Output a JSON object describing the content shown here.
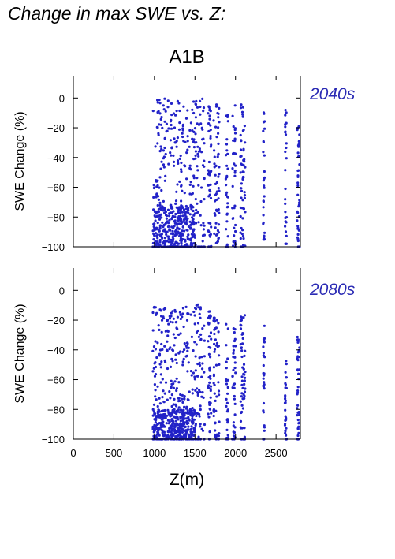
{
  "page": {
    "title": "Change in max SWE vs. Z:"
  },
  "colors": {
    "points": "#2222c8",
    "period_label": "#2a2ab4",
    "axis": "#000000"
  },
  "chart_data": [
    {
      "type": "scatter",
      "title": "A1B",
      "period_label": "2040s",
      "xlabel": "Z(m)",
      "ylabel": "SWE Change (%)",
      "xlim": [
        0,
        2800
      ],
      "ylim": [
        -100,
        15
      ],
      "xticks": [
        0,
        500,
        1000,
        1500,
        2000,
        2500
      ],
      "yticks": [
        0,
        -20,
        -40,
        -60,
        -80,
        -100
      ],
      "show_xtick_labels": false,
      "grid": false,
      "legend": "none",
      "elevation_bands": [
        {
          "z": [
            980,
            1500
          ],
          "dense": true,
          "y_range": [
            -100,
            0
          ],
          "cluster_y": [
            -100,
            -72
          ],
          "count": 520
        },
        {
          "z": [
            1500,
            1620
          ],
          "dense": false,
          "y_range": [
            -100,
            0
          ],
          "count": 70
        },
        {
          "z": [
            1660,
            1700
          ],
          "dense": false,
          "y_range": [
            -100,
            -3
          ],
          "count": 45
        },
        {
          "z": [
            1730,
            1800
          ],
          "dense": false,
          "y_range": [
            -100,
            -4
          ],
          "count": 55
        },
        {
          "z": [
            1880,
            1910
          ],
          "dense": false,
          "y_range": [
            -100,
            -8
          ],
          "count": 30
        },
        {
          "z": [
            1960,
            2000
          ],
          "dense": false,
          "y_range": [
            -100,
            -5
          ],
          "count": 35
        },
        {
          "z": [
            2060,
            2120
          ],
          "dense": false,
          "y_range": [
            -100,
            -4
          ],
          "count": 60
        },
        {
          "z": [
            2340,
            2360
          ],
          "dense": false,
          "y_range": [
            -95,
            -8
          ],
          "count": 30
        },
        {
          "z": [
            2610,
            2630
          ],
          "dense": false,
          "y_range": [
            -98,
            -7
          ],
          "count": 30
        },
        {
          "z": [
            2760,
            2790
          ],
          "dense": false,
          "y_range": [
            -100,
            -16
          ],
          "count": 40
        }
      ]
    },
    {
      "type": "scatter",
      "title": "",
      "period_label": "2080s",
      "xlabel": "Z(m)",
      "ylabel": "SWE Change (%)",
      "xlim": [
        0,
        2800
      ],
      "ylim": [
        -100,
        15
      ],
      "xticks": [
        0,
        500,
        1000,
        1500,
        2000,
        2500
      ],
      "yticks": [
        0,
        -20,
        -40,
        -60,
        -80,
        -100
      ],
      "show_xtick_labels": true,
      "grid": false,
      "legend": "none",
      "elevation_bands": [
        {
          "z": [
            980,
            1500
          ],
          "dense": true,
          "y_range": [
            -100,
            -11
          ],
          "cluster_y": [
            -100,
            -80
          ],
          "count": 560
        },
        {
          "z": [
            1500,
            1620
          ],
          "dense": false,
          "y_range": [
            -100,
            -8
          ],
          "count": 70
        },
        {
          "z": [
            1660,
            1700
          ],
          "dense": false,
          "y_range": [
            -100,
            -12
          ],
          "count": 45
        },
        {
          "z": [
            1730,
            1800
          ],
          "dense": false,
          "y_range": [
            -100,
            -15
          ],
          "count": 55
        },
        {
          "z": [
            1880,
            1910
          ],
          "dense": false,
          "y_range": [
            -100,
            -22
          ],
          "count": 30
        },
        {
          "z": [
            1960,
            2000
          ],
          "dense": false,
          "y_range": [
            -100,
            -23
          ],
          "count": 35
        },
        {
          "z": [
            2060,
            2120
          ],
          "dense": false,
          "y_range": [
            -100,
            -14
          ],
          "count": 60
        },
        {
          "z": [
            2340,
            2360
          ],
          "dense": false,
          "y_range": [
            -100,
            -23
          ],
          "count": 30
        },
        {
          "z": [
            2610,
            2630
          ],
          "dense": false,
          "y_range": [
            -100,
            -23
          ],
          "count": 30
        },
        {
          "z": [
            2760,
            2790
          ],
          "dense": false,
          "y_range": [
            -100,
            -26
          ],
          "count": 40
        }
      ]
    }
  ]
}
